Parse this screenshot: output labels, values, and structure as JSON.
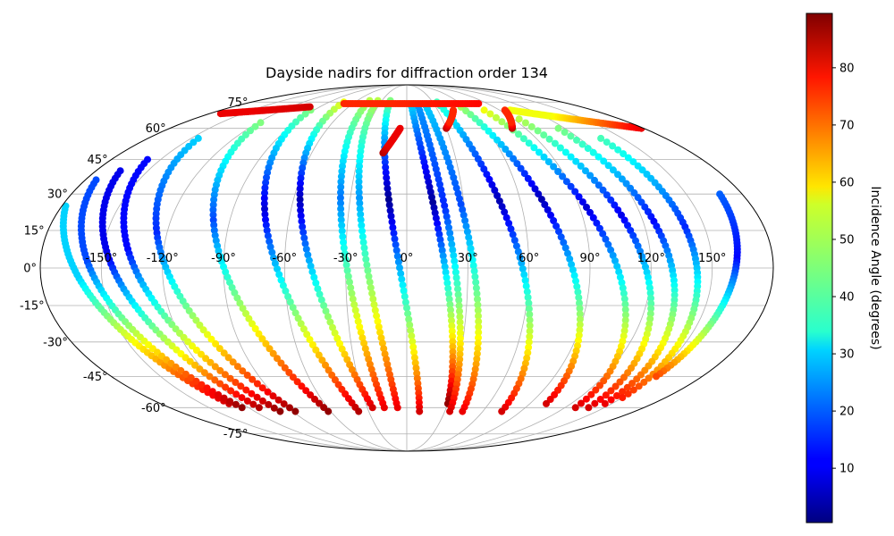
{
  "chart_data": {
    "type": "scatter",
    "projection": "mollweide",
    "title": "Dayside nadirs for diffraction order 134",
    "grid": true,
    "lon_ticks": [
      {
        "value": -150,
        "label": "-150°"
      },
      {
        "value": -120,
        "label": "-120°"
      },
      {
        "value": -90,
        "label": "-90°"
      },
      {
        "value": -60,
        "label": "-60°"
      },
      {
        "value": -30,
        "label": "-30°"
      },
      {
        "value": 0,
        "label": "0°"
      },
      {
        "value": 30,
        "label": "30°"
      },
      {
        "value": 60,
        "label": "60°"
      },
      {
        "value": 90,
        "label": "90°"
      },
      {
        "value": 120,
        "label": "120°"
      },
      {
        "value": 150,
        "label": "150°"
      }
    ],
    "lat_ticks": [
      {
        "value": 75,
        "label": "75°"
      },
      {
        "value": 60,
        "label": "60°"
      },
      {
        "value": 45,
        "label": "45°"
      },
      {
        "value": 30,
        "label": "30°"
      },
      {
        "value": 15,
        "label": "15°"
      },
      {
        "value": 0,
        "label": "0°"
      },
      {
        "value": -15,
        "label": "-15°"
      },
      {
        "value": -30,
        "label": "-30°"
      },
      {
        "value": -45,
        "label": "-45°"
      },
      {
        "value": -60,
        "label": "-60°"
      },
      {
        "value": -75,
        "label": "-75°"
      }
    ],
    "colorbar": {
      "label": "Incidence Angle (degrees)",
      "colormap": "jet",
      "range": [
        0.5,
        89.5
      ],
      "ticks": [
        {
          "value": 10,
          "label": "10"
        },
        {
          "value": 20,
          "label": "20"
        },
        {
          "value": 30,
          "label": "30"
        },
        {
          "value": 40,
          "label": "40"
        },
        {
          "value": 50,
          "label": "50"
        },
        {
          "value": 60,
          "label": "60"
        },
        {
          "value": 70,
          "label": "70"
        },
        {
          "value": 80,
          "label": "80"
        }
      ]
    },
    "tracks": [
      {
        "lon_start": -178,
        "lat_start": 25,
        "lon_end": -130,
        "lat_end": -58,
        "inc_start": 30,
        "inc_end": 83,
        "inc_min": 30
      },
      {
        "lon_start": -174,
        "lat_start": 36,
        "lon_end": -125,
        "lat_end": -60,
        "inc_start": 18,
        "inc_end": 88,
        "inc_min": 18
      },
      {
        "lon_start": -166,
        "lat_start": 40,
        "lon_end": -112,
        "lat_end": -60,
        "inc_start": 10,
        "inc_end": 85,
        "inc_min": 10
      },
      {
        "lon_start": -158,
        "lat_start": 45,
        "lon_end": -100,
        "lat_end": -62,
        "inc_start": 12,
        "inc_end": 88,
        "inc_min": 12
      },
      {
        "lon_start": -145,
        "lat_start": 55,
        "lon_end": -88,
        "lat_end": -62,
        "inc_start": 30,
        "inc_end": 88,
        "inc_min": 15
      },
      {
        "lon_start": -118,
        "lat_start": 63,
        "lon_end": -62,
        "lat_end": -62,
        "inc_start": 45,
        "inc_end": 88,
        "inc_min": 18
      },
      {
        "lon_start": -93,
        "lat_start": 70,
        "lon_end": -38,
        "lat_end": -62,
        "inc_start": 45,
        "inc_end": 85,
        "inc_min": 8
      },
      {
        "lon_start": -73,
        "lat_start": 75,
        "lon_end": -26,
        "lat_end": -60,
        "inc_start": 55,
        "inc_end": 82,
        "inc_min": 5
      },
      {
        "lon_start": -45,
        "lat_start": 76,
        "lon_end": -17,
        "lat_end": -60,
        "inc_start": 50,
        "inc_end": 80,
        "inc_min": 22
      },
      {
        "lon_start": -35,
        "lat_start": 76,
        "lon_end": -7,
        "lat_end": -60,
        "inc_start": 50,
        "inc_end": 80,
        "inc_min": 25
      },
      {
        "lon_start": -20,
        "lat_start": 76,
        "lon_end": 10,
        "lat_end": -62,
        "inc_start": 45,
        "inc_end": 82,
        "inc_min": 2
      },
      {
        "lon_start": 5,
        "lat_start": 72,
        "lon_end": 30,
        "lat_end": -58,
        "inc_start": 30,
        "inc_end": 88,
        "inc_min": 3
      },
      {
        "lon_start": 12,
        "lat_start": 72,
        "lon_end": 34,
        "lat_end": -62,
        "inc_start": 25,
        "inc_end": 82,
        "inc_min": 15
      },
      {
        "lon_start": 20,
        "lat_start": 73,
        "lon_end": 44,
        "lat_end": -62,
        "inc_start": 30,
        "inc_end": 80,
        "inc_min": 18
      },
      {
        "lon_start": 35,
        "lat_start": 75,
        "lon_end": 75,
        "lat_end": -62,
        "inc_start": 40,
        "inc_end": 82,
        "inc_min": 5
      },
      {
        "lon_start": 55,
        "lat_start": 74,
        "lon_end": 102,
        "lat_end": -58,
        "inc_start": 50,
        "inc_end": 82,
        "inc_min": 5
      },
      {
        "lon_start": 75,
        "lat_start": 70,
        "lon_end": 128,
        "lat_end": -60,
        "inc_start": 55,
        "inc_end": 82,
        "inc_min": 8
      },
      {
        "lon_start": 95,
        "lat_start": 65,
        "lon_end": 138,
        "lat_end": -60,
        "inc_start": 50,
        "inc_end": 82,
        "inc_min": 10
      },
      {
        "lon_start": 115,
        "lat_start": 60,
        "lon_end": 145,
        "lat_end": -58,
        "inc_start": 45,
        "inc_end": 80,
        "inc_min": 12
      },
      {
        "lon_start": 135,
        "lat_start": 55,
        "lon_end": 150,
        "lat_end": -55,
        "inc_start": 40,
        "inc_end": 76,
        "inc_min": 15
      },
      {
        "lon_start": 168,
        "lat_start": 30,
        "lon_end": 152,
        "lat_end": -45,
        "inc_start": 20,
        "inc_end": 72,
        "inc_min": 12
      },
      {
        "lon_start": -170,
        "lat_start": 68,
        "lon_end": -100,
        "lat_end": 72,
        "inc_start": 80,
        "inc_end": 82,
        "inc_min": 80
      },
      {
        "lon_start": -70,
        "lat_start": 74,
        "lon_end": 80,
        "lat_end": 74,
        "inc_start": 75,
        "inc_end": 78,
        "inc_min": 75
      },
      {
        "lon_start": 100,
        "lat_start": 70,
        "lon_end": 178,
        "lat_end": 60,
        "inc_start": 55,
        "inc_end": 80,
        "inc_min": 55
      },
      {
        "lon_start": -15,
        "lat_start": 48,
        "lon_end": -5,
        "lat_end": 60,
        "inc_start": 85,
        "inc_end": 80,
        "inc_min": 80
      },
      {
        "lon_start": 30,
        "lat_start": 60,
        "lon_end": 45,
        "lat_end": 70,
        "inc_start": 85,
        "inc_end": 75,
        "inc_min": 75
      },
      {
        "lon_start": 80,
        "lat_start": 60,
        "lon_end": 95,
        "lat_end": 70,
        "inc_start": 85,
        "inc_end": 75,
        "inc_min": 75
      }
    ]
  }
}
